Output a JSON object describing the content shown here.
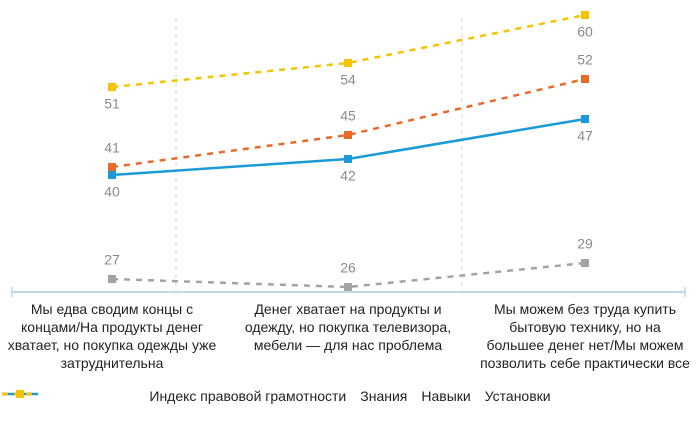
{
  "chart_data": {
    "type": "line",
    "categories": [
      "Мы едва сводим концы с концами/На продукты денег хватает, но покупка одежды уже затруднительна",
      "Денег хватает на продукты и одежду, но покупка телевизора, мебели — для нас проблема",
      "Мы можем без труда купить бытовую технику, но на большее денег нет/Мы можем позволить себе практически все"
    ],
    "series": [
      {
        "name": "Индекс правовой грамотности",
        "color": "#1a9ad6",
        "values": [
          40,
          42,
          47
        ]
      },
      {
        "name": "Знания",
        "color": "#e8692a",
        "values": [
          41,
          45,
          52
        ]
      },
      {
        "name": "Навыки",
        "color": "#a3a3a3",
        "values": [
          27,
          26,
          29
        ]
      },
      {
        "name": "Установки",
        "color": "#f5c400",
        "values": [
          51,
          54,
          60
        ]
      }
    ]
  }
}
